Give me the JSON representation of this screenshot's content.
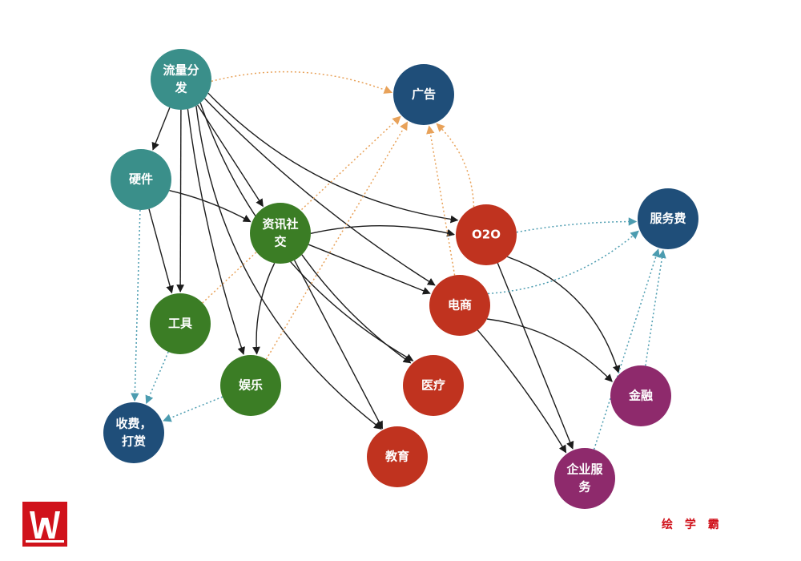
{
  "colors": {
    "teal": "#3a8f8a",
    "navy": "#1f4e79",
    "green": "#3b7d25",
    "red": "#c0331f",
    "magenta": "#8e2a6c",
    "solid_edge": "#1c1c1c",
    "orange_edge": "#e8a25a",
    "blue_edge": "#4c9cb0",
    "brand": "#d0121b"
  },
  "nodes": [
    {
      "id": "liuliang",
      "lines": [
        "流量分",
        "发"
      ],
      "color": "teal"
    },
    {
      "id": "yingjian",
      "lines": [
        "硬件"
      ],
      "color": "teal"
    },
    {
      "id": "guanggao",
      "lines": [
        "广告"
      ],
      "color": "navy"
    },
    {
      "id": "zixun",
      "lines": [
        "资讯社",
        "交"
      ],
      "color": "green"
    },
    {
      "id": "gongju",
      "lines": [
        "工具"
      ],
      "color": "green"
    },
    {
      "id": "yule",
      "lines": [
        "娱乐"
      ],
      "color": "green"
    },
    {
      "id": "shoufei",
      "lines": [
        "收费，",
        "打赏"
      ],
      "color": "navy"
    },
    {
      "id": "o2o",
      "lines": [
        "O2O"
      ],
      "color": "red"
    },
    {
      "id": "dianshang",
      "lines": [
        "电商"
      ],
      "color": "red"
    },
    {
      "id": "yiliao",
      "lines": [
        "医疗"
      ],
      "color": "red"
    },
    {
      "id": "jiaoyu",
      "lines": [
        "教育"
      ],
      "color": "red"
    },
    {
      "id": "fuwufei",
      "lines": [
        "服务费"
      ],
      "color": "navy"
    },
    {
      "id": "jinrong",
      "lines": [
        "金融"
      ],
      "color": "magenta"
    },
    {
      "id": "qiye",
      "lines": [
        "企业服",
        "务"
      ],
      "color": "magenta"
    }
  ],
  "edges": [
    {
      "from": "liuliang",
      "to": "yingjian",
      "style": "solid"
    },
    {
      "from": "liuliang",
      "to": "gongju",
      "style": "solid"
    },
    {
      "from": "liuliang",
      "to": "yule",
      "style": "solid"
    },
    {
      "from": "liuliang",
      "to": "zixun",
      "style": "solid"
    },
    {
      "from": "liuliang",
      "to": "o2o",
      "style": "solid"
    },
    {
      "from": "liuliang",
      "to": "dianshang",
      "style": "solid"
    },
    {
      "from": "liuliang",
      "to": "yiliao",
      "style": "solid"
    },
    {
      "from": "liuliang",
      "to": "jiaoyu",
      "style": "solid"
    },
    {
      "from": "liuliang",
      "to": "guanggao",
      "style": "orange"
    },
    {
      "from": "yingjian",
      "to": "gongju",
      "style": "solid"
    },
    {
      "from": "yingjian",
      "to": "zixun",
      "style": "solid"
    },
    {
      "from": "yingjian",
      "to": "shoufei",
      "style": "blue"
    },
    {
      "from": "zixun",
      "to": "o2o",
      "style": "solid"
    },
    {
      "from": "zixun",
      "to": "dianshang",
      "style": "solid"
    },
    {
      "from": "zixun",
      "to": "yiliao",
      "style": "solid"
    },
    {
      "from": "zixun",
      "to": "jiaoyu",
      "style": "solid"
    },
    {
      "from": "zixun",
      "to": "yule",
      "style": "solid"
    },
    {
      "from": "gongju",
      "to": "guanggao",
      "style": "orange"
    },
    {
      "from": "gongju",
      "to": "shoufei",
      "style": "blue"
    },
    {
      "from": "yule",
      "to": "guanggao",
      "style": "orange"
    },
    {
      "from": "yule",
      "to": "shoufei",
      "style": "blue"
    },
    {
      "from": "o2o",
      "to": "guanggao",
      "style": "orange"
    },
    {
      "from": "o2o",
      "to": "fuwufei",
      "style": "blue"
    },
    {
      "from": "o2o",
      "to": "jinrong",
      "style": "solid"
    },
    {
      "from": "o2o",
      "to": "qiye",
      "style": "solid"
    },
    {
      "from": "dianshang",
      "to": "guanggao",
      "style": "orange"
    },
    {
      "from": "dianshang",
      "to": "fuwufei",
      "style": "blue"
    },
    {
      "from": "dianshang",
      "to": "jinrong",
      "style": "solid"
    },
    {
      "from": "dianshang",
      "to": "qiye",
      "style": "solid"
    },
    {
      "from": "jinrong",
      "to": "fuwufei",
      "style": "blue"
    },
    {
      "from": "qiye",
      "to": "fuwufei",
      "style": "blue"
    }
  ],
  "brand": {
    "logo_text": "W",
    "name": "绘 学 霸"
  }
}
